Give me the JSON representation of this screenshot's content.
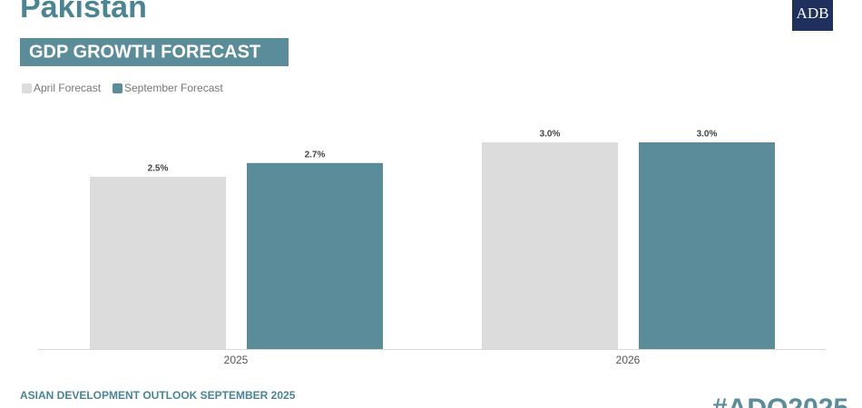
{
  "chart_data": {
    "type": "bar",
    "title": "Pakistan",
    "subtitle": "GDP GROWTH FORECAST",
    "logo": "ADB",
    "footer": "ASIAN DEVELOPMENT OUTLOOK SEPTEMBER 2025",
    "hashtag": "#ADO2025",
    "categories": [
      "2025",
      "2026"
    ],
    "series": [
      {
        "name": "April Forecast",
        "color": "#dcdcdc",
        "values": [
          2.5,
          3.0
        ],
        "value_labels": [
          "2.5%",
          "3.0%"
        ]
      },
      {
        "name": "September Forecast",
        "color": "#5a8d99",
        "values": [
          2.7,
          3.0
        ],
        "value_labels": [
          "2.7%",
          "3.0%"
        ]
      }
    ]
  }
}
